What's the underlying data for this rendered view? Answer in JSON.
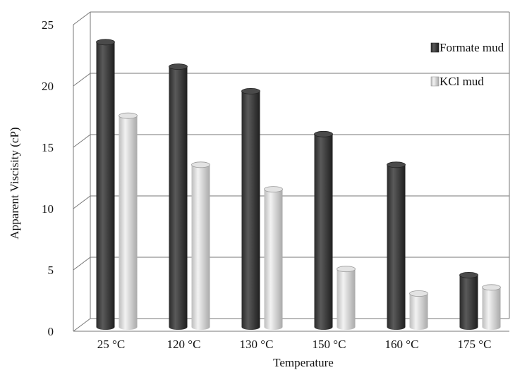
{
  "chart_data": {
    "type": "bar",
    "title": "",
    "xlabel": "Temperature",
    "ylabel": "Apparent Viscisity (cP)",
    "categories": [
      "25 °C",
      "120 °C",
      "130 °C",
      "150 °C",
      "160 °C",
      "175 °C"
    ],
    "yticks": [
      "0",
      "5",
      "10",
      "15",
      "20",
      "25"
    ],
    "ylim": [
      0,
      25
    ],
    "grid": true,
    "legend_position": "top-right",
    "series": [
      {
        "name": "Formate mud",
        "color": "#3a3a3a",
        "values": [
          23,
          21,
          19,
          15.5,
          13,
          4
        ]
      },
      {
        "name": "KCl mud",
        "color": "#cfcfcf",
        "values": [
          17,
          13,
          11,
          4.5,
          2.5,
          3
        ]
      }
    ]
  }
}
